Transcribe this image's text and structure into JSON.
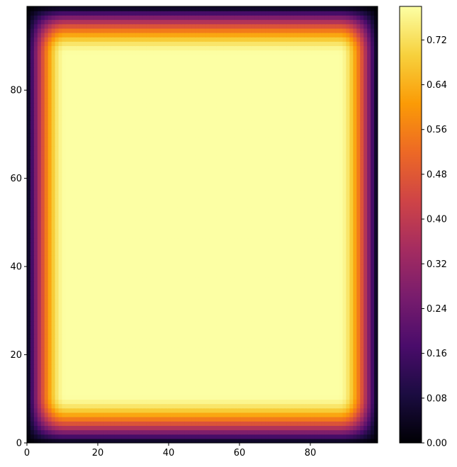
{
  "chart_data": {
    "type": "heatmap",
    "title": "",
    "xlabel": "",
    "ylabel": "",
    "xlim": [
      0,
      99
    ],
    "ylim": [
      0,
      99
    ],
    "x_ticks": [
      0,
      20,
      40,
      60,
      80
    ],
    "y_ticks": [
      0,
      20,
      40,
      60,
      80
    ],
    "colormap": "inferno",
    "colorbar": {
      "vmin": 0.0,
      "vmax": 0.78,
      "ticks": [
        0.0,
        0.08,
        0.16,
        0.24,
        0.32,
        0.4,
        0.48,
        0.56,
        0.64,
        0.72
      ],
      "tick_labels": [
        "0.00",
        "0.08",
        "0.16",
        "0.24",
        "0.32",
        "0.40",
        "0.48",
        "0.56",
        "0.64",
        "0.72"
      ]
    },
    "field": {
      "description": "value rises from 0 at all edges to a plateau",
      "plateau_value": 0.78,
      "edge_value": 0.0,
      "edge_width": 11
    },
    "colormap_stops": [
      "#000004",
      "#1b0c41",
      "#4a0c6b",
      "#781c6d",
      "#a52c60",
      "#cf4446",
      "#ed6925",
      "#fb9b06",
      "#f7d13d",
      "#fcffa4"
    ],
    "grid": false
  }
}
